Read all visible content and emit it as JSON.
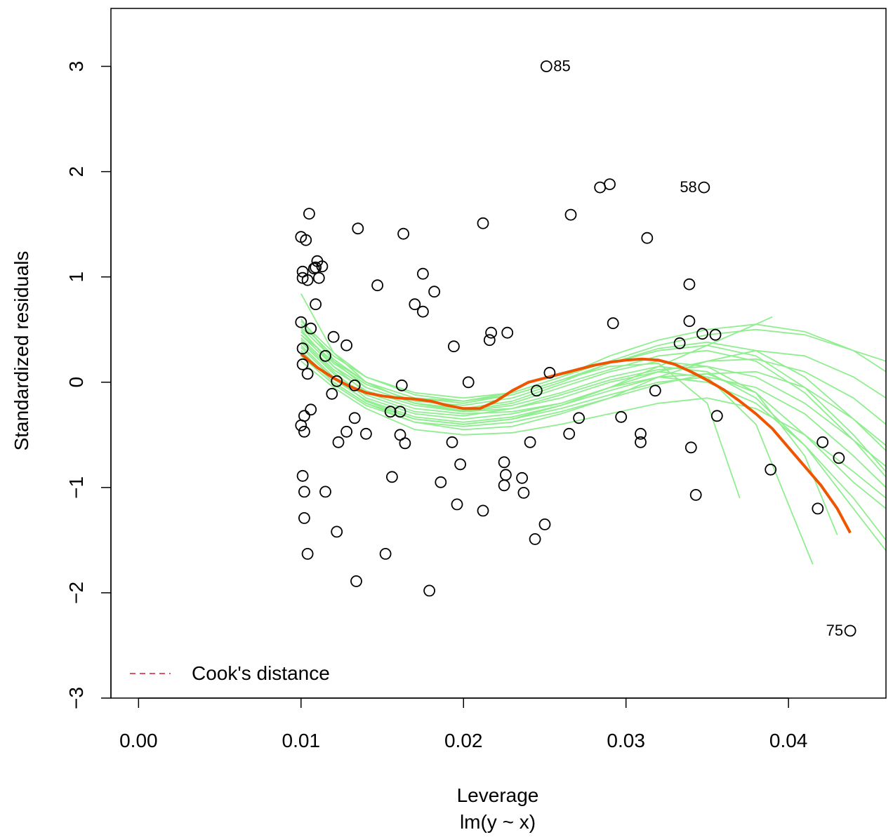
{
  "chart_data": {
    "type": "scatter",
    "title": "",
    "xlabel": "Leverage",
    "subtitle": "lm(y ~ x)",
    "ylabel": "Standardized residuals",
    "xlim": [
      -0.0017,
      0.046
    ],
    "ylim": [
      -3.0,
      3.55
    ],
    "xticks": [
      0.0,
      0.01,
      0.02,
      0.03,
      0.04
    ],
    "xtick_labels": [
      "0.00",
      "0.01",
      "0.02",
      "0.03",
      "0.04"
    ],
    "yticks": [
      -3,
      -2,
      -1,
      0,
      1,
      2,
      3
    ],
    "ytick_labels": [
      "−3",
      "−2",
      "−1",
      "0",
      "1",
      "2",
      "3"
    ],
    "grid": false,
    "legend": {
      "placement": "bottom-left",
      "entries": [
        {
          "label": "Cook's distance",
          "color": "#DF536B",
          "style": "dashed"
        }
      ]
    },
    "colors": {
      "points": "#000000",
      "smooth": "#EE5500",
      "simulated": "#90EE90",
      "cooks": "#DF536B"
    },
    "points": [
      [
        0.01,
        1.38
      ],
      [
        0.0101,
        1.05
      ],
      [
        0.0101,
        0.99
      ],
      [
        0.0103,
        1.35
      ],
      [
        0.0105,
        1.6
      ],
      [
        0.0104,
        0.97
      ],
      [
        0.011,
        1.15
      ],
      [
        0.0109,
        1.09
      ],
      [
        0.0108,
        1.08
      ],
      [
        0.0113,
        1.1
      ],
      [
        0.0111,
        0.99
      ],
      [
        0.0109,
        0.74
      ],
      [
        0.01,
        0.57
      ],
      [
        0.0106,
        0.51
      ],
      [
        0.0101,
        0.32
      ],
      [
        0.0101,
        0.17
      ],
      [
        0.0104,
        0.08
      ],
      [
        0.0115,
        0.25
      ],
      [
        0.012,
        0.43
      ],
      [
        0.0128,
        0.35
      ],
      [
        0.0122,
        0.01
      ],
      [
        0.0119,
        -0.11
      ],
      [
        0.0133,
        -0.03
      ],
      [
        0.0106,
        -0.26
      ],
      [
        0.0102,
        -0.32
      ],
      [
        0.01,
        -0.41
      ],
      [
        0.0102,
        -0.47
      ],
      [
        0.0128,
        -0.47
      ],
      [
        0.0133,
        -0.34
      ],
      [
        0.0123,
        -0.57
      ],
      [
        0.014,
        -0.49
      ],
      [
        0.0101,
        -0.89
      ],
      [
        0.0102,
        -1.04
      ],
      [
        0.0102,
        -1.29
      ],
      [
        0.0104,
        -1.63
      ],
      [
        0.0115,
        -1.04
      ],
      [
        0.0122,
        -1.42
      ],
      [
        0.0134,
        -1.89
      ],
      [
        0.0135,
        1.46
      ],
      [
        0.0147,
        0.92
      ],
      [
        0.0163,
        1.41
      ],
      [
        0.0175,
        1.03
      ],
      [
        0.0182,
        0.86
      ],
      [
        0.017,
        0.74
      ],
      [
        0.0175,
        0.67
      ],
      [
        0.0162,
        -0.03
      ],
      [
        0.0155,
        -0.28
      ],
      [
        0.0161,
        -0.28
      ],
      [
        0.0161,
        -0.5
      ],
      [
        0.0164,
        -0.58
      ],
      [
        0.0156,
        -0.9
      ],
      [
        0.0152,
        -1.63
      ],
      [
        0.0179,
        -1.98
      ],
      [
        0.0194,
        0.34
      ],
      [
        0.0203,
        0.0
      ],
      [
        0.0193,
        -0.57
      ],
      [
        0.0198,
        -0.78
      ],
      [
        0.0186,
        -0.95
      ],
      [
        0.0196,
        -1.16
      ],
      [
        0.0212,
        -1.22
      ],
      [
        0.0212,
        1.51
      ],
      [
        0.0217,
        0.47
      ],
      [
        0.0216,
        0.4
      ],
      [
        0.0227,
        0.47
      ],
      [
        0.0225,
        -0.76
      ],
      [
        0.0226,
        -0.88
      ],
      [
        0.0225,
        -0.98
      ],
      [
        0.0236,
        -0.91
      ],
      [
        0.0237,
        -1.05
      ],
      [
        0.0241,
        -0.57
      ],
      [
        0.0245,
        -0.08
      ],
      [
        0.0244,
        -1.49
      ],
      [
        0.025,
        -1.35
      ],
      [
        0.0253,
        0.09
      ],
      [
        0.0251,
        3.0
      ],
      [
        0.0266,
        1.59
      ],
      [
        0.0265,
        -0.49
      ],
      [
        0.0271,
        -0.34
      ],
      [
        0.0284,
        1.85
      ],
      [
        0.029,
        1.88
      ],
      [
        0.0292,
        0.56
      ],
      [
        0.0297,
        -0.33
      ],
      [
        0.0309,
        -0.49
      ],
      [
        0.0309,
        -0.57
      ],
      [
        0.0313,
        1.37
      ],
      [
        0.0318,
        -0.08
      ],
      [
        0.0333,
        0.37
      ],
      [
        0.0339,
        0.93
      ],
      [
        0.0339,
        0.58
      ],
      [
        0.034,
        -0.62
      ],
      [
        0.0343,
        -1.07
      ],
      [
        0.0347,
        0.46
      ],
      [
        0.0348,
        1.85
      ],
      [
        0.0355,
        0.45
      ],
      [
        0.0356,
        -0.32
      ],
      [
        0.0389,
        -0.83
      ],
      [
        0.0418,
        -1.2
      ],
      [
        0.0421,
        -0.57
      ],
      [
        0.0431,
        -0.72
      ],
      [
        0.0438,
        -2.36
      ]
    ],
    "labels": [
      {
        "text": "85",
        "x": 0.0251,
        "y": 3.0,
        "side": "right"
      },
      {
        "text": "58",
        "x": 0.0348,
        "y": 1.85,
        "side": "left"
      },
      {
        "text": "75",
        "x": 0.0438,
        "y": -2.36,
        "side": "left"
      }
    ],
    "smooth_line": {
      "x": [
        0.01,
        0.011,
        0.012,
        0.013,
        0.014,
        0.015,
        0.016,
        0.017,
        0.018,
        0.019,
        0.02,
        0.021,
        0.022,
        0.023,
        0.024,
        0.025,
        0.026,
        0.027,
        0.028,
        0.029,
        0.03,
        0.031,
        0.032,
        0.033,
        0.034,
        0.035,
        0.036,
        0.037,
        0.038,
        0.039,
        0.04,
        0.041,
        0.042,
        0.043,
        0.0438
      ],
      "y": [
        0.27,
        0.14,
        0.04,
        -0.04,
        -0.1,
        -0.13,
        -0.15,
        -0.16,
        -0.18,
        -0.22,
        -0.25,
        -0.25,
        -0.18,
        -0.08,
        0.0,
        0.04,
        0.08,
        0.12,
        0.16,
        0.19,
        0.21,
        0.22,
        0.21,
        0.17,
        0.1,
        0.02,
        -0.07,
        -0.18,
        -0.3,
        -0.44,
        -0.62,
        -0.8,
        -0.98,
        -1.2,
        -1.43
      ]
    },
    "simulated_lines": [
      {
        "x": [
          0.01,
          0.012,
          0.014,
          0.017,
          0.02,
          0.023,
          0.026,
          0.029,
          0.032,
          0.035,
          0.038,
          0.041,
          0.044,
          0.046
        ],
        "y": [
          0.84,
          0.28,
          0.0,
          -0.2,
          -0.27,
          -0.2,
          -0.05,
          0.1,
          0.2,
          0.15,
          -0.1,
          -0.5,
          -0.95,
          -1.2
        ]
      },
      {
        "x": [
          0.01,
          0.012,
          0.014,
          0.017,
          0.02,
          0.023,
          0.026,
          0.029,
          0.032,
          0.035,
          0.038,
          0.041,
          0.044,
          0.046
        ],
        "y": [
          0.6,
          0.2,
          -0.05,
          -0.2,
          -0.25,
          -0.18,
          -0.02,
          0.12,
          0.25,
          0.3,
          0.2,
          -0.1,
          -0.55,
          -0.9
        ]
      },
      {
        "x": [
          0.01,
          0.012,
          0.014,
          0.017,
          0.02,
          0.023,
          0.026,
          0.029,
          0.032,
          0.035,
          0.038,
          0.041,
          0.044,
          0.046
        ],
        "y": [
          0.5,
          0.15,
          -0.1,
          -0.25,
          -0.3,
          -0.28,
          -0.2,
          -0.05,
          0.1,
          0.2,
          0.22,
          0.1,
          -0.15,
          -0.4
        ]
      },
      {
        "x": [
          0.01,
          0.012,
          0.014,
          0.017,
          0.02,
          0.023,
          0.026,
          0.029,
          0.032,
          0.035,
          0.038,
          0.041,
          0.044,
          0.046
        ],
        "y": [
          0.45,
          0.2,
          0.0,
          -0.15,
          -0.18,
          -0.1,
          0.05,
          0.2,
          0.35,
          0.45,
          0.5,
          0.45,
          0.3,
          0.2
        ]
      },
      {
        "x": [
          0.01,
          0.012,
          0.014,
          0.017,
          0.02,
          0.023,
          0.026,
          0.029,
          0.032,
          0.035,
          0.038,
          0.041,
          0.044,
          0.046
        ],
        "y": [
          0.4,
          0.1,
          -0.15,
          -0.3,
          -0.35,
          -0.3,
          -0.2,
          -0.05,
          0.05,
          0.0,
          -0.2,
          -0.6,
          -1.1,
          -1.5
        ]
      },
      {
        "x": [
          0.01,
          0.012,
          0.014,
          0.017,
          0.02,
          0.023,
          0.026,
          0.029,
          0.032,
          0.035,
          0.038,
          0.041,
          0.044,
          0.046
        ],
        "y": [
          0.35,
          0.05,
          -0.18,
          -0.35,
          -0.4,
          -0.35,
          -0.25,
          -0.12,
          0.0,
          0.05,
          -0.05,
          -0.3,
          -0.7,
          -1.0
        ]
      },
      {
        "x": [
          0.01,
          0.012,
          0.014,
          0.017,
          0.02,
          0.023,
          0.026,
          0.029,
          0.032,
          0.035,
          0.038,
          0.041,
          0.044,
          0.046
        ],
        "y": [
          0.3,
          0.0,
          -0.2,
          -0.38,
          -0.45,
          -0.42,
          -0.3,
          -0.15,
          0.05,
          0.2,
          0.3,
          0.25,
          0.05,
          -0.15
        ]
      },
      {
        "x": [
          0.01,
          0.012,
          0.014,
          0.017,
          0.02,
          0.023,
          0.026,
          0.029,
          0.032,
          0.035,
          0.038,
          0.041,
          0.044,
          0.046
        ],
        "y": [
          0.55,
          0.25,
          0.05,
          -0.1,
          -0.15,
          -0.1,
          0.05,
          0.25,
          0.4,
          0.5,
          0.55,
          0.48,
          0.3,
          0.1
        ]
      },
      {
        "x": [
          0.01,
          0.012,
          0.014,
          0.017,
          0.02,
          0.023,
          0.026,
          0.029,
          0.032,
          0.035,
          0.038,
          0.041,
          0.044,
          0.046
        ],
        "y": [
          0.2,
          -0.05,
          -0.25,
          -0.45,
          -0.5,
          -0.48,
          -0.4,
          -0.3,
          -0.2,
          -0.15,
          -0.25,
          -0.5,
          -0.85,
          -1.1
        ]
      },
      {
        "x": [
          0.01,
          0.012,
          0.014,
          0.017,
          0.02,
          0.023,
          0.026,
          0.029,
          0.032,
          0.035,
          0.038,
          0.041,
          0.044,
          0.046
        ],
        "y": [
          0.42,
          0.12,
          -0.08,
          -0.22,
          -0.28,
          -0.22,
          -0.1,
          0.05,
          0.15,
          0.1,
          -0.15,
          -0.6,
          -1.2,
          -1.6
        ]
      },
      {
        "x": [
          0.01,
          0.012,
          0.014,
          0.017,
          0.02,
          0.023,
          0.026,
          0.029,
          0.032,
          0.035,
          0.038,
          0.041,
          0.044,
          0.046
        ],
        "y": [
          0.38,
          0.08,
          -0.12,
          -0.28,
          -0.32,
          -0.25,
          -0.12,
          0.02,
          0.12,
          0.15,
          0.05,
          -0.2,
          -0.55,
          -0.8
        ]
      },
      {
        "x": [
          0.01,
          0.012,
          0.014,
          0.017,
          0.02,
          0.023,
          0.026,
          0.029,
          0.032,
          0.035,
          0.038,
          0.041,
          0.044,
          0.046
        ],
        "y": [
          0.48,
          0.18,
          -0.02,
          -0.18,
          -0.22,
          -0.15,
          0.0,
          0.18,
          0.32,
          0.38,
          0.3,
          0.05,
          -0.35,
          -0.65
        ]
      },
      {
        "x": [
          0.01,
          0.012,
          0.014,
          0.017,
          0.02,
          0.023,
          0.026,
          0.029,
          0.032,
          0.035,
          0.037
        ],
        "y": [
          0.52,
          0.22,
          0.0,
          -0.15,
          -0.2,
          -0.12,
          0.02,
          0.15,
          0.18,
          -0.2,
          -1.1
        ]
      },
      {
        "x": [
          0.01,
          0.012,
          0.014,
          0.017,
          0.02,
          0.023,
          0.026,
          0.029,
          0.032,
          0.035,
          0.038,
          0.0415
        ],
        "y": [
          0.45,
          0.15,
          -0.05,
          -0.2,
          -0.28,
          -0.25,
          -0.15,
          0.0,
          0.1,
          0.05,
          -0.4,
          -1.73
        ]
      },
      {
        "x": [
          0.01,
          0.012,
          0.014,
          0.017,
          0.02,
          0.023,
          0.026,
          0.029,
          0.032,
          0.035,
          0.038,
          0.041,
          0.043
        ],
        "y": [
          0.33,
          0.03,
          -0.17,
          -0.33,
          -0.38,
          -0.33,
          -0.22,
          -0.08,
          0.05,
          0.08,
          -0.1,
          -0.7,
          -1.45
        ]
      },
      {
        "x": [
          0.01,
          0.012,
          0.014,
          0.017,
          0.02,
          0.023,
          0.026,
          0.029,
          0.032,
          0.035,
          0.038,
          0.039
        ],
        "y": [
          0.28,
          0.0,
          -0.2,
          -0.35,
          -0.4,
          -0.35,
          -0.22,
          -0.05,
          0.15,
          0.35,
          0.55,
          0.62
        ]
      },
      {
        "x": [
          0.01,
          0.012,
          0.014,
          0.017,
          0.02,
          0.023,
          0.026,
          0.029,
          0.032,
          0.035,
          0.038,
          0.041,
          0.044,
          0.046
        ],
        "y": [
          0.25,
          -0.02,
          -0.22,
          -0.38,
          -0.42,
          -0.38,
          -0.28,
          -0.15,
          -0.02,
          0.08,
          0.1,
          -0.05,
          -0.35,
          -0.6
        ]
      },
      {
        "x": [
          0.01,
          0.012,
          0.014,
          0.017,
          0.02,
          0.023,
          0.026,
          0.029,
          0.032,
          0.035,
          0.038,
          0.041,
          0.044,
          0.046
        ],
        "y": [
          0.58,
          0.28,
          0.05,
          -0.12,
          -0.18,
          -0.12,
          0.02,
          0.18,
          0.3,
          0.35,
          0.25,
          -0.05,
          -0.5,
          -0.85
        ]
      }
    ]
  }
}
